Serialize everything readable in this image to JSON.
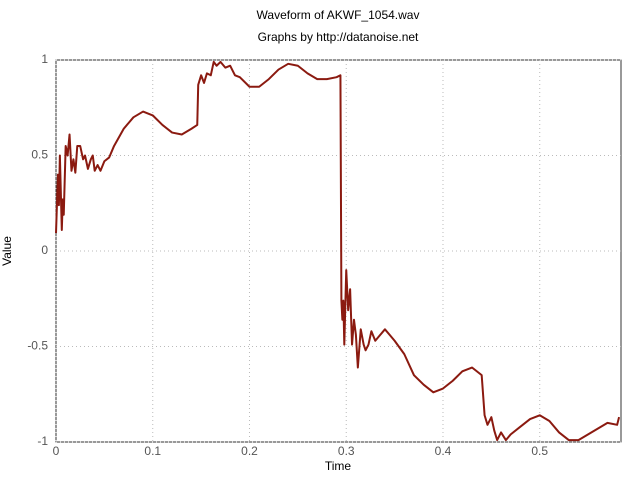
{
  "chart_data": {
    "type": "line",
    "title": "Waveform of AKWF_1054.wav",
    "subtitle": "Graphs by http://datanoise.net",
    "x_label": "Time",
    "y_label": "Value",
    "xlim": [
      0,
      0.584
    ],
    "ylim": [
      -1,
      1
    ],
    "xticks": [
      0,
      0.1,
      0.2,
      0.3,
      0.4,
      0.5
    ],
    "yticks": [
      1,
      0.5,
      0,
      -0.5,
      -1
    ],
    "grid": true,
    "series": [
      {
        "color": "#8b1a10",
        "x": [
          0,
          0.002,
          0.003,
          0.004,
          0.006,
          0.007,
          0.008,
          0.01,
          0.012,
          0.014,
          0.016,
          0.018,
          0.02,
          0.022,
          0.025,
          0.028,
          0.03,
          0.033,
          0.036,
          0.038,
          0.04,
          0.043,
          0.046,
          0.05,
          0.055,
          0.06,
          0.07,
          0.08,
          0.09,
          0.1,
          0.11,
          0.12,
          0.13,
          0.14,
          0.146,
          0.147,
          0.15,
          0.153,
          0.156,
          0.16,
          0.163,
          0.166,
          0.17,
          0.175,
          0.18,
          0.185,
          0.19,
          0.2,
          0.21,
          0.22,
          0.23,
          0.24,
          0.25,
          0.26,
          0.27,
          0.28,
          0.29,
          0.294,
          0.295,
          0.296,
          0.297,
          0.298,
          0.3,
          0.302,
          0.304,
          0.306,
          0.308,
          0.31,
          0.312,
          0.315,
          0.318,
          0.32,
          0.323,
          0.326,
          0.33,
          0.335,
          0.34,
          0.345,
          0.35,
          0.36,
          0.37,
          0.38,
          0.39,
          0.4,
          0.41,
          0.42,
          0.43,
          0.44,
          0.443,
          0.446,
          0.45,
          0.453,
          0.456,
          0.46,
          0.465,
          0.47,
          0.48,
          0.49,
          0.5,
          0.51,
          0.52,
          0.53,
          0.54,
          0.55,
          0.56,
          0.57,
          0.58,
          0.582
        ],
        "values": [
          0.094,
          0.4,
          0.24,
          0.5,
          0.11,
          0.27,
          0.19,
          0.55,
          0.5,
          0.61,
          0.42,
          0.48,
          0.41,
          0.55,
          0.55,
          0.48,
          0.5,
          0.43,
          0.48,
          0.5,
          0.42,
          0.45,
          0.42,
          0.47,
          0.49,
          0.55,
          0.64,
          0.7,
          0.73,
          0.71,
          0.66,
          0.62,
          0.61,
          0.64,
          0.66,
          0.87,
          0.92,
          0.88,
          0.93,
          0.92,
          0.99,
          0.97,
          0.99,
          0.96,
          0.97,
          0.92,
          0.91,
          0.86,
          0.86,
          0.9,
          0.95,
          0.98,
          0.97,
          0.93,
          0.9,
          0.9,
          0.91,
          0.92,
          -0.26,
          -0.36,
          -0.26,
          -0.49,
          -0.1,
          -0.31,
          -0.2,
          -0.49,
          -0.36,
          -0.44,
          -0.61,
          -0.41,
          -0.49,
          -0.52,
          -0.49,
          -0.42,
          -0.47,
          -0.44,
          -0.41,
          -0.44,
          -0.47,
          -0.54,
          -0.65,
          -0.7,
          -0.74,
          -0.72,
          -0.68,
          -0.63,
          -0.61,
          -0.65,
          -0.86,
          -0.91,
          -0.87,
          -0.94,
          -0.99,
          -0.95,
          -0.99,
          -0.96,
          -0.92,
          -0.88,
          -0.86,
          -0.89,
          -0.95,
          -0.99,
          -0.99,
          -0.96,
          -0.93,
          -0.9,
          -0.91,
          -0.87
        ]
      }
    ]
  }
}
